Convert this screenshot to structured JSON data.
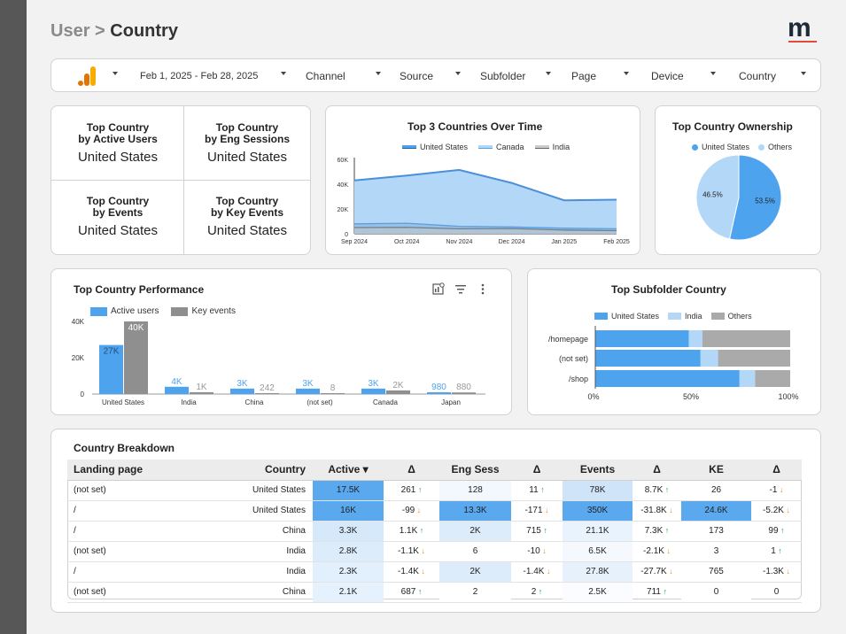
{
  "header": {
    "crumb": "User >",
    "current": "Country",
    "logo_letter": "m"
  },
  "filters": {
    "date": "Feb 1, 2025 - Feb 28, 2025",
    "items": [
      "Channel",
      "Source",
      "Subfolder",
      "Page",
      "Device",
      "Country"
    ]
  },
  "kpis": [
    {
      "title1": "Top Country",
      "title2": "by Active Users",
      "value": "United States"
    },
    {
      "title1": "Top Country",
      "title2": "by Eng Sessions",
      "value": "United States"
    },
    {
      "title1": "Top Country",
      "title2": "by Events",
      "value": "United States"
    },
    {
      "title1": "Top Country",
      "title2": "by Key Events",
      "value": "United States"
    }
  ],
  "time_chart": {
    "title": "Top 3 Countries Over Time",
    "legend": [
      "United States",
      "Canada",
      "India"
    ],
    "y_ticks": [
      "60K",
      "40K",
      "20K",
      "0"
    ],
    "x_ticks": [
      "Sep 2024",
      "Oct 2024",
      "Nov 2024",
      "Dec 2024",
      "Jan 2025",
      "Feb 2025"
    ]
  },
  "pie_chart": {
    "title": "Top Country Ownership",
    "legend": [
      "United States",
      "Others"
    ],
    "labels": [
      "53.5%",
      "46.5%"
    ]
  },
  "perf_chart": {
    "title": "Top Country Performance",
    "legend": [
      "Active users",
      "Key events"
    ],
    "y_ticks": [
      "40K",
      "20K",
      "0"
    ],
    "categories": [
      "United States",
      "India",
      "China",
      "(not set)",
      "Canada",
      "Japan"
    ],
    "active_labels": [
      "27K",
      "4K",
      "3K",
      "3K",
      "3K",
      "980"
    ],
    "key_labels": [
      "40K",
      "1K",
      "242",
      "8",
      "2K",
      "880"
    ]
  },
  "subfolder_chart": {
    "title": "Top Subfolder Country",
    "legend": [
      "United States",
      "India",
      "Others"
    ],
    "categories": [
      "/homepage",
      "(not set)",
      "/shop"
    ],
    "x_ticks": [
      "0%",
      "50%",
      "100%"
    ]
  },
  "table": {
    "title": "Country Breakdown",
    "headers": [
      "Landing page",
      "Country",
      "Active ▾",
      "Δ",
      "Eng Sess",
      "Δ",
      "Events",
      "Δ",
      "KE",
      "Δ"
    ],
    "rows": [
      [
        "(not set)",
        "United States",
        "17.5K",
        "261",
        "128",
        "11",
        "78K",
        "8.7K",
        "26",
        "-1"
      ],
      [
        "/",
        "United States",
        "16K",
        "-99",
        "13.3K",
        "-171",
        "350K",
        "-31.8K",
        "24.6K",
        "-5.2K"
      ],
      [
        "/",
        "China",
        "3.3K",
        "1.1K",
        "2K",
        "715",
        "21.1K",
        "7.3K",
        "173",
        "99"
      ],
      [
        "(not set)",
        "India",
        "2.8K",
        "-1.1K",
        "6",
        "-10",
        "6.5K",
        "-2.1K",
        "3",
        "1"
      ],
      [
        "/",
        "India",
        "2.3K",
        "-1.4K",
        "2K",
        "-1.4K",
        "27.8K",
        "-27.7K",
        "765",
        "-1.3K"
      ],
      [
        "(not set)",
        "China",
        "2.1K",
        "687",
        "2",
        "2",
        "2.5K",
        "711",
        "0",
        "0"
      ]
    ]
  },
  "colors": {
    "blue": "#4ea3ee",
    "light_blue": "#b3d7f7",
    "gray": "#9e9e9e",
    "up": "#2e9e3a",
    "down": "#f08a24"
  },
  "chart_data": [
    {
      "type": "area",
      "title": "Top 3 Countries Over Time",
      "x": [
        "Sep 2024",
        "Oct 2024",
        "Nov 2024",
        "Dec 2024",
        "Jan 2025",
        "Feb 2025"
      ],
      "series": [
        {
          "name": "United States",
          "values": [
            43000,
            47000,
            51500,
            41000,
            27000,
            27500
          ]
        },
        {
          "name": "Canada",
          "values": [
            8000,
            8500,
            6000,
            5500,
            4500,
            4000
          ]
        },
        {
          "name": "India",
          "values": [
            5000,
            5200,
            4000,
            4200,
            3000,
            2500
          ]
        }
      ],
      "ylim": [
        0,
        60000
      ]
    },
    {
      "type": "pie",
      "title": "Top Country Ownership",
      "slices": [
        {
          "name": "United States",
          "value": 53.5
        },
        {
          "name": "Others",
          "value": 46.5
        }
      ]
    },
    {
      "type": "bar",
      "title": "Top Country Performance",
      "categories": [
        "United States",
        "India",
        "China",
        "(not set)",
        "Canada",
        "Japan"
      ],
      "series": [
        {
          "name": "Active users",
          "values": [
            27000,
            4000,
            3000,
            3000,
            3000,
            980
          ]
        },
        {
          "name": "Key events",
          "values": [
            40000,
            1000,
            242,
            8,
            2000,
            880
          ]
        }
      ],
      "ylim": [
        0,
        40000
      ]
    },
    {
      "type": "bar",
      "title": "Top Subfolder Country",
      "categories": [
        "/homepage",
        "(not set)",
        "/shop"
      ],
      "series": [
        {
          "name": "United States",
          "values": [
            48,
            54,
            74
          ]
        },
        {
          "name": "India",
          "values": [
            7,
            9,
            8
          ]
        },
        {
          "name": "Others",
          "values": [
            45,
            37,
            18
          ]
        }
      ],
      "xlim": [
        0,
        100
      ]
    }
  ]
}
